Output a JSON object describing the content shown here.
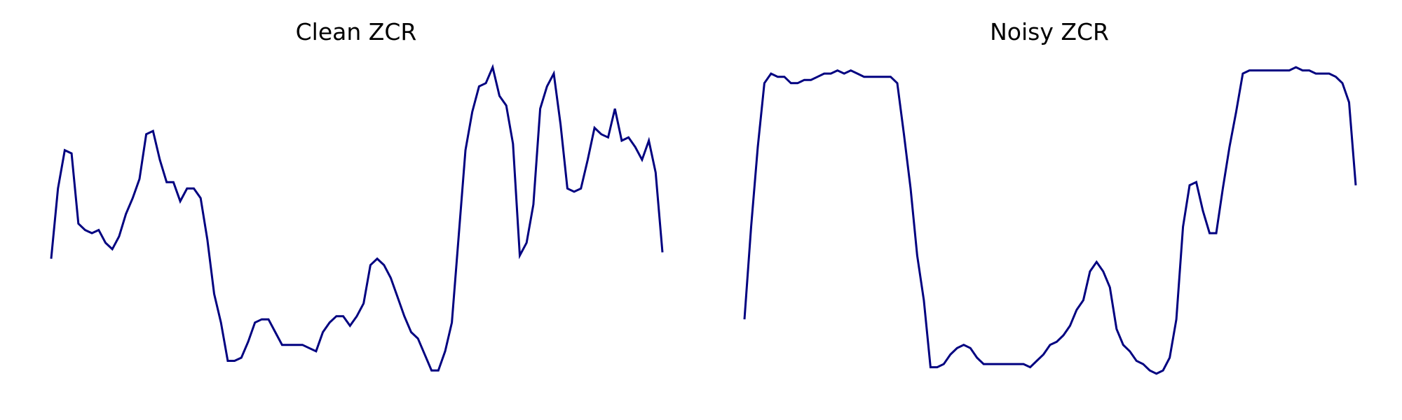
{
  "figure": {
    "background": "#ffffff"
  },
  "chart_data": [
    {
      "type": "line",
      "title": "Clean ZCR",
      "xlabel": "",
      "ylabel": "",
      "axes_visible": false,
      "grid": false,
      "legend": "none",
      "ylim": [
        0,
        1
      ],
      "color": "#000080",
      "series": [
        {
          "values": [
            0.4,
            0.62,
            0.74,
            0.73,
            0.51,
            0.49,
            0.48,
            0.49,
            0.45,
            0.43,
            0.47,
            0.54,
            0.59,
            0.65,
            0.79,
            0.8,
            0.71,
            0.64,
            0.64,
            0.58,
            0.62,
            0.62,
            0.59,
            0.46,
            0.29,
            0.2,
            0.08,
            0.08,
            0.09,
            0.14,
            0.2,
            0.21,
            0.21,
            0.17,
            0.13,
            0.13,
            0.13,
            0.13,
            0.12,
            0.11,
            0.17,
            0.2,
            0.22,
            0.22,
            0.19,
            0.22,
            0.26,
            0.38,
            0.4,
            0.38,
            0.34,
            0.28,
            0.22,
            0.17,
            0.15,
            0.1,
            0.05,
            0.05,
            0.11,
            0.2,
            0.47,
            0.74,
            0.86,
            0.94,
            0.95,
            1.0,
            0.91,
            0.88,
            0.76,
            0.41,
            0.45,
            0.57,
            0.87,
            0.94,
            0.98,
            0.82,
            0.62,
            0.61,
            0.62,
            0.71,
            0.81,
            0.79,
            0.78,
            0.87,
            0.77,
            0.78,
            0.75,
            0.71,
            0.77,
            0.67,
            0.42
          ]
        }
      ]
    },
    {
      "type": "line",
      "title": "Noisy ZCR",
      "xlabel": "",
      "ylabel": "",
      "axes_visible": false,
      "grid": false,
      "legend": "none",
      "ylim": [
        0,
        1
      ],
      "color": "#000080",
      "series": [
        {
          "values": [
            0.21,
            0.5,
            0.75,
            0.95,
            0.98,
            0.97,
            0.97,
            0.95,
            0.95,
            0.96,
            0.96,
            0.97,
            0.98,
            0.98,
            0.99,
            0.98,
            0.99,
            0.98,
            0.97,
            0.97,
            0.97,
            0.97,
            0.97,
            0.95,
            0.79,
            0.62,
            0.41,
            0.27,
            0.06,
            0.06,
            0.07,
            0.1,
            0.12,
            0.13,
            0.12,
            0.09,
            0.07,
            0.07,
            0.07,
            0.07,
            0.07,
            0.07,
            0.07,
            0.06,
            0.08,
            0.1,
            0.13,
            0.14,
            0.16,
            0.19,
            0.24,
            0.27,
            0.36,
            0.39,
            0.36,
            0.31,
            0.18,
            0.13,
            0.11,
            0.08,
            0.07,
            0.05,
            0.04,
            0.05,
            0.09,
            0.21,
            0.5,
            0.63,
            0.64,
            0.55,
            0.48,
            0.48,
            0.62,
            0.75,
            0.86,
            0.98,
            0.99,
            0.99,
            0.99,
            0.99,
            0.99,
            0.99,
            0.99,
            1.0,
            0.99,
            0.99,
            0.98,
            0.98,
            0.98,
            0.97,
            0.95,
            0.89,
            0.63
          ]
        }
      ]
    }
  ]
}
